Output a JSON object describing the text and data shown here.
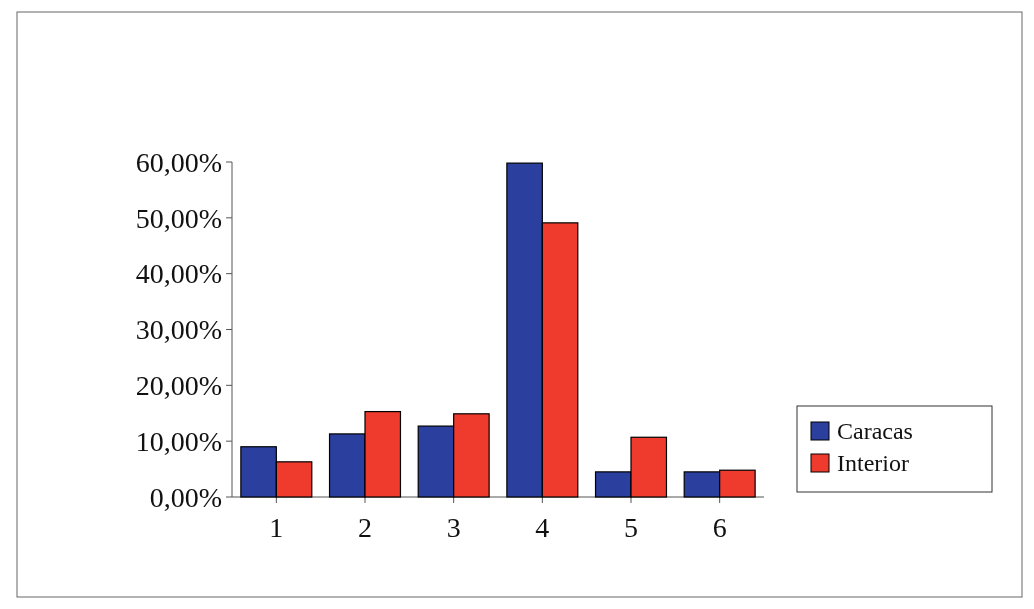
{
  "chart_data": {
    "type": "bar",
    "categories": [
      "1",
      "2",
      "3",
      "4",
      "5",
      "6"
    ],
    "series": [
      {
        "name": "Caracas",
        "color": "#2a3f9e",
        "values": [
          9.0,
          11.3,
          12.7,
          59.8,
          4.5,
          4.5
        ]
      },
      {
        "name": "Interior",
        "color": "#ee3b2e",
        "values": [
          6.3,
          15.3,
          14.9,
          49.1,
          10.7,
          4.8
        ]
      }
    ],
    "ylim": [
      0,
      60
    ],
    "yticks": [
      {
        "value": 0,
        "label": "0,00%"
      },
      {
        "value": 10,
        "label": "10,00%"
      },
      {
        "value": 20,
        "label": "20,00%"
      },
      {
        "value": 30,
        "label": "30,00%"
      },
      {
        "value": 40,
        "label": "40,00%"
      },
      {
        "value": 50,
        "label": "50,00%"
      },
      {
        "value": 60,
        "label": "60,00%"
      }
    ],
    "grid": false,
    "legend": "right"
  }
}
